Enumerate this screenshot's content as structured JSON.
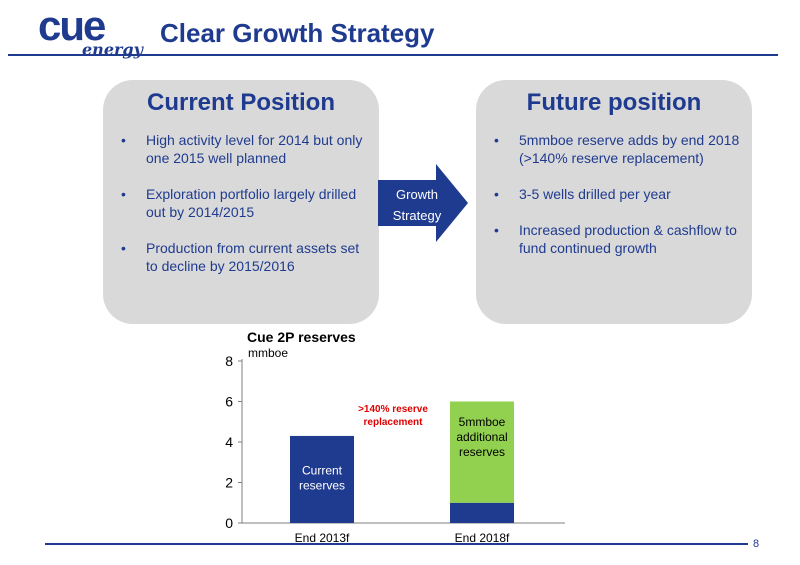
{
  "logo": {
    "word": "cue",
    "sub": "energy"
  },
  "header": {
    "title": "Clear Growth Strategy"
  },
  "current": {
    "title": "Current Position",
    "bullets": [
      "High activity level for 2014 but only one 2015 well planned",
      "Exploration portfolio largely drilled out by 2014/2015",
      "Production from current assets set to decline by 2015/2016"
    ]
  },
  "arrow": {
    "line1": "Growth",
    "line2": "Strategy"
  },
  "future": {
    "title": "Future position",
    "bullets": [
      "5mmboe reserve adds by end 2018 (>140% reserve replacement)",
      "3-5 wells drilled per year",
      "Increased production & cashflow to fund continued growth"
    ]
  },
  "page_number": "8",
  "colors": {
    "brand": "#1f3b8f",
    "panel": "#d9d9d9",
    "growth": "#92d050",
    "annotation": "#e00000"
  },
  "chart_data": {
    "type": "bar",
    "title": "Cue 2P reserves",
    "ylabel": "mmboe",
    "categories": [
      "End 2013f",
      "End 2018f"
    ],
    "series": [
      {
        "values": [
          4.3,
          1.0
        ],
        "color": "#1f3b8f"
      },
      {
        "values": [
          0,
          5.0
        ],
        "color": "#92d050"
      }
    ],
    "ylim": [
      0,
      8
    ],
    "yticks": [
      0,
      2,
      4,
      6,
      8
    ],
    "bar_labels": [
      {
        "lines": [
          "Current",
          "reserves"
        ],
        "category": 0,
        "value": 2.0
      },
      {
        "lines": [
          "5mmboe",
          "additional",
          "reserves"
        ],
        "category": 1,
        "value": 4.3
      }
    ],
    "annotation": {
      "lines": [
        ">140% reserve",
        "replacement"
      ]
    }
  }
}
